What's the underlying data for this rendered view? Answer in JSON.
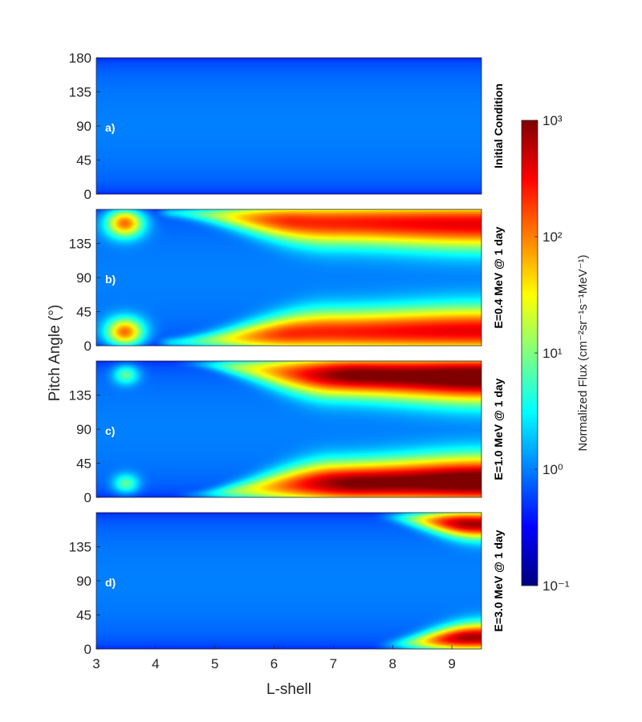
{
  "chart_data": {
    "type": "heatmap",
    "xlabel": "L-shell",
    "ylabel": "Pitch Angle (°)",
    "xlim": [
      3,
      9.5
    ],
    "ylim": [
      0,
      180
    ],
    "xticks": [
      "3",
      "4",
      "5",
      "6",
      "7",
      "8",
      "9"
    ],
    "yticks": [
      "0",
      "45",
      "90",
      "135",
      "180"
    ],
    "colorbar": {
      "label": "Normalized Flux (cm⁻²sr⁻¹s⁻¹MeV⁻¹)",
      "scale": "log",
      "range": [
        0.1,
        1000
      ],
      "tick_labels": [
        "10⁻¹",
        "10⁰",
        "10¹",
        "10²",
        "10³"
      ],
      "colormap": "jet"
    },
    "panels": [
      {
        "id": "a",
        "label": "a)",
        "title": "Initial Condition",
        "yticks": [
          "0",
          "45",
          "90",
          "135",
          "180"
        ],
        "description_values": {
          "peak_log10_flux": 0.0
        }
      },
      {
        "id": "b",
        "label": "b)",
        "title": "E=0.4 MeV @ 1 day",
        "yticks": [
          "0",
          "45",
          "90",
          "135"
        ],
        "description_values": {
          "peak_log10_flux": 2.75
        }
      },
      {
        "id": "c",
        "label": "c)",
        "title": "E=1.0 MeV @ 1 day",
        "yticks": [
          "0",
          "45",
          "90",
          "135"
        ],
        "description_values": {
          "peak_log10_flux": 3.0
        }
      },
      {
        "id": "d",
        "label": "d)",
        "title": "E=3.0 MeV @ 1 day",
        "yticks": [
          "0",
          "45",
          "90",
          "135"
        ],
        "description_values": {
          "peak_log10_flux": 2.4
        }
      }
    ]
  }
}
